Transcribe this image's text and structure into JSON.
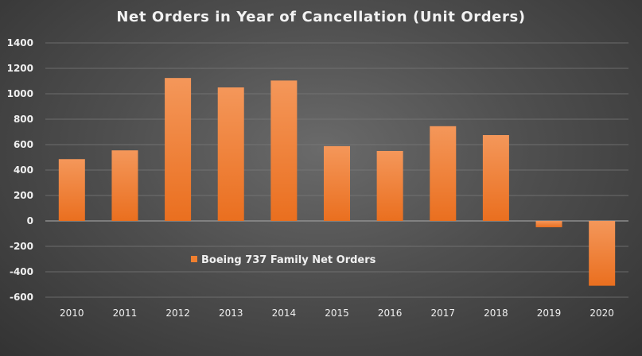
{
  "chart_data": {
    "type": "bar",
    "title": "Net Orders in Year of Cancellation  (Unit Orders)",
    "categories": [
      "2010",
      "2011",
      "2012",
      "2013",
      "2014",
      "2015",
      "2016",
      "2017",
      "2018",
      "2019",
      "2020"
    ],
    "series": [
      {
        "name": "Boeing 737 Family Net Orders",
        "values": [
          486,
          555,
          1124,
          1050,
          1104,
          588,
          550,
          745,
          675,
          -50,
          -510
        ],
        "color": "#f07f2f"
      }
    ],
    "ylim": [
      -600,
      1400
    ],
    "yticks": [
      "1400",
      "1200",
      "1000",
      "800",
      "600",
      "400",
      "200",
      "0",
      "-200",
      "-400",
      "-600"
    ],
    "grid": true,
    "legend_position": "inside-bottom-left",
    "colors": {
      "bar": "#f07f2f",
      "bar_dark": "#e06a1c",
      "grid": "#7a7a7a",
      "text": "#f0f0f0"
    }
  }
}
